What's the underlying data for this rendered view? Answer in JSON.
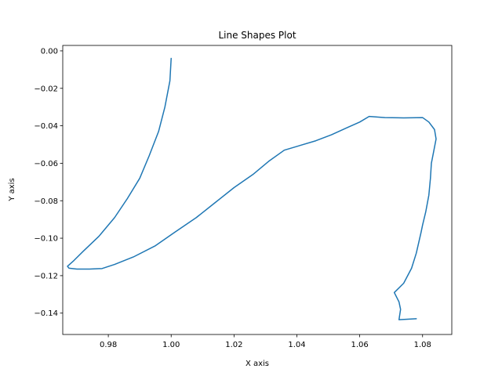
{
  "chart_data": {
    "type": "line",
    "title": "Line Shapes Plot",
    "xlabel": "X axis",
    "ylabel": "Y axis",
    "xlim": [
      0.9655,
      1.0893
    ],
    "ylim": [
      -0.1514,
      0.0029
    ],
    "grid": false,
    "legend": "none",
    "x_ticks": [
      0.98,
      1.0,
      1.02,
      1.04,
      1.06,
      1.08
    ],
    "x_tick_labels": [
      "0.98",
      "1.00",
      "1.02",
      "1.04",
      "1.06",
      "1.08"
    ],
    "y_ticks": [
      0.0,
      -0.02,
      -0.04,
      -0.06,
      -0.08,
      -0.1,
      -0.12,
      -0.14
    ],
    "y_tick_labels": [
      "0.00",
      "−0.02",
      "−0.04",
      "−0.06",
      "−0.08",
      "−0.10",
      "−0.12",
      "−0.14"
    ],
    "series": [
      {
        "color": "#1f77b4",
        "x": [
          1.0,
          0.9996,
          0.998,
          0.996,
          0.993,
          0.99,
          0.986,
          0.982,
          0.977,
          0.972,
          0.969,
          0.967,
          0.9675,
          0.97,
          0.974,
          0.978,
          0.982,
          0.988,
          0.995,
          1.001,
          1.008,
          1.014,
          1.02,
          1.026,
          1.031,
          1.036,
          1.041,
          1.046,
          1.051,
          1.056,
          1.06,
          1.063,
          1.068,
          1.074,
          1.08,
          1.082,
          1.0838,
          1.0843,
          1.0835,
          1.0828,
          1.0825,
          1.082,
          1.081,
          1.08,
          1.0795,
          1.078,
          1.0765,
          1.074,
          1.071,
          1.0725,
          1.073,
          1.0725,
          1.078
        ],
        "y": [
          -0.004,
          -0.016,
          -0.03,
          -0.043,
          -0.056,
          -0.068,
          -0.079,
          -0.089,
          -0.099,
          -0.107,
          -0.112,
          -0.115,
          -0.116,
          -0.1165,
          -0.1165,
          -0.1162,
          -0.114,
          -0.11,
          -0.104,
          -0.097,
          -0.089,
          -0.081,
          -0.073,
          -0.066,
          -0.059,
          -0.053,
          -0.0505,
          -0.048,
          -0.0448,
          -0.041,
          -0.038,
          -0.035,
          -0.0356,
          -0.0358,
          -0.0356,
          -0.038,
          -0.042,
          -0.047,
          -0.054,
          -0.06,
          -0.068,
          -0.077,
          -0.086,
          -0.093,
          -0.097,
          -0.108,
          -0.116,
          -0.124,
          -0.129,
          -0.134,
          -0.138,
          -0.1435,
          -0.143
        ]
      }
    ]
  }
}
